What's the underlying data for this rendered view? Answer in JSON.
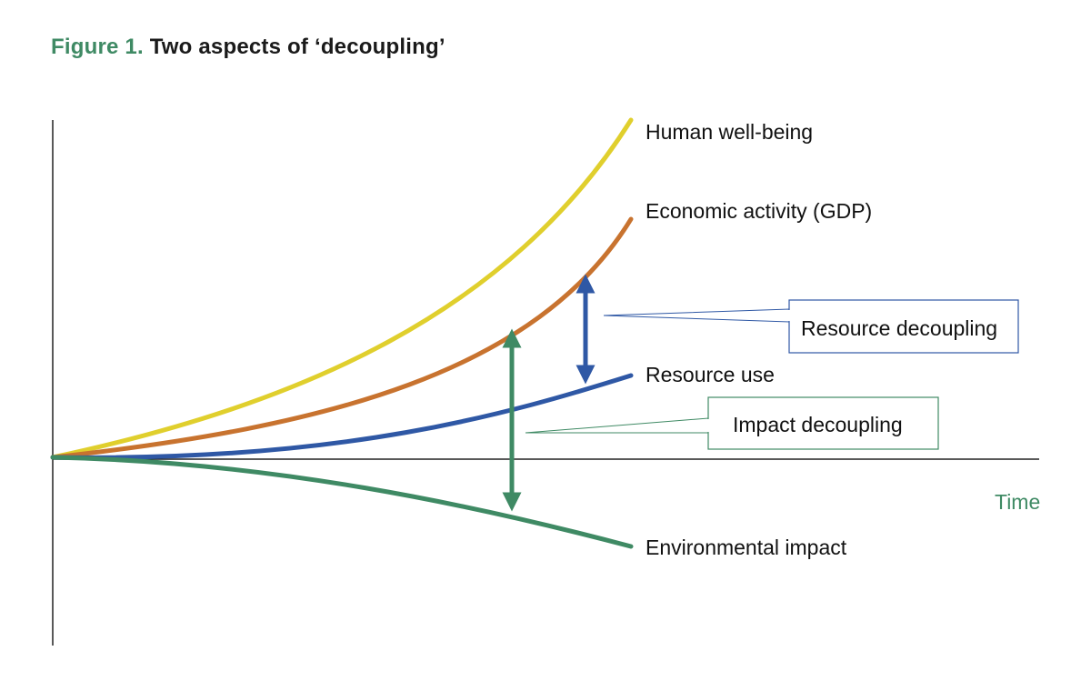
{
  "figure": {
    "prefix": "Figure 1.",
    "title": "Two aspects of ‘decoupling’"
  },
  "axes": {
    "x_label": "Time"
  },
  "curves": [
    {
      "id": "human-well-being",
      "label": "Human well-being",
      "color": "#e0cf2d"
    },
    {
      "id": "economic-activity",
      "label": "Economic activity (GDP)",
      "color": "#c8732f"
    },
    {
      "id": "resource-use",
      "label": "Resource use",
      "color": "#2f58a5"
    },
    {
      "id": "environmental-impact",
      "label": "Environmental impact",
      "color": "#3f8a64"
    }
  ],
  "decoupling": {
    "resource": {
      "label": "Resource decoupling",
      "color": "#2f58a5"
    },
    "impact": {
      "label": "Impact decoupling",
      "color": "#3f8a64"
    }
  },
  "colors": {
    "axis": "#222222",
    "fig_prefix": "#3f8a64"
  }
}
